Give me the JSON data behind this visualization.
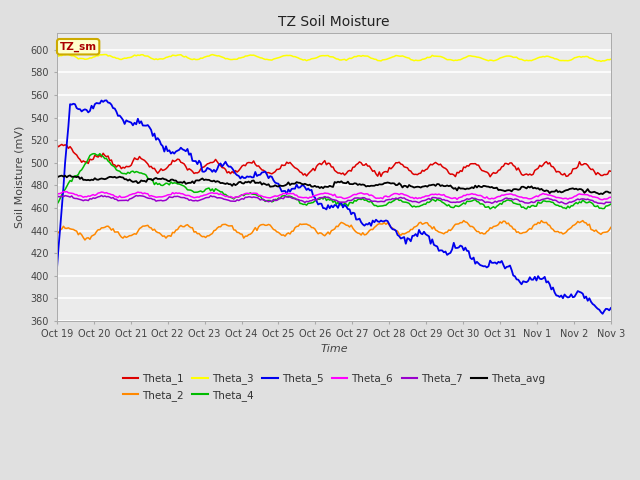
{
  "title": "TZ Soil Moisture",
  "xlabel": "Time",
  "ylabel": "Soil Moisture (mV)",
  "ylim": [
    360,
    615
  ],
  "yticks": [
    360,
    380,
    400,
    420,
    440,
    460,
    480,
    500,
    520,
    540,
    560,
    580,
    600
  ],
  "x_labels": [
    "Oct 19",
    "Oct 20",
    "Oct 21",
    "Oct 22",
    "Oct 23",
    "Oct 24",
    "Oct 25",
    "Oct 26",
    "Oct 27",
    "Oct 28",
    "Oct 29",
    "Oct 30",
    "Oct 31",
    "Nov 1",
    "Nov 2",
    "Nov 3"
  ],
  "n_points": 336,
  "background_color": "#e0e0e0",
  "plot_bg_color": "#ebebeb",
  "legend_box_color": "#ffffcc",
  "legend_box_border": "#ccaa00",
  "colors": {
    "Theta_1": "#dd0000",
    "Theta_2": "#ff8800",
    "Theta_3": "#ffff00",
    "Theta_4": "#00bb00",
    "Theta_5": "#0000ee",
    "Theta_6": "#ff00ff",
    "Theta_7": "#9900cc",
    "Theta_avg": "#000000"
  }
}
